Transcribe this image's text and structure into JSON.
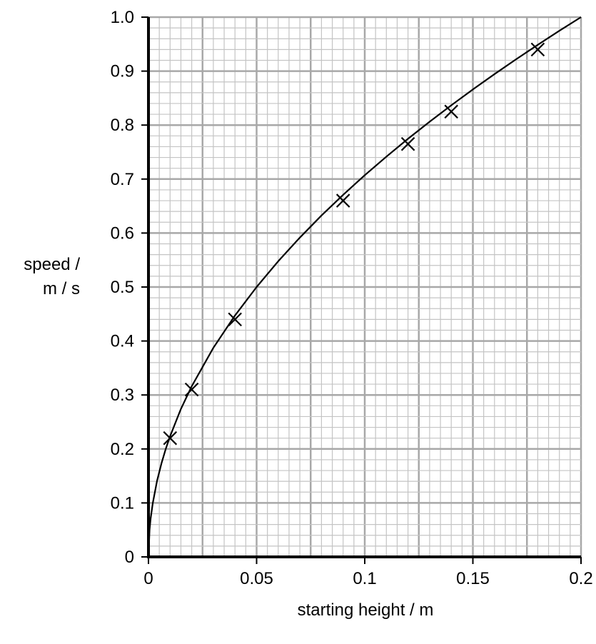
{
  "chart_data": {
    "type": "scatter",
    "xlabel": "starting height / m",
    "ylabel_line1": "speed /",
    "ylabel_line2": "m / s",
    "xlim": [
      0,
      0.2
    ],
    "ylim": [
      0,
      1.0
    ],
    "x_ticks": [
      "0",
      "0.05",
      "0.1",
      "0.15",
      "0.2"
    ],
    "y_ticks": [
      "0",
      "0.1",
      "0.2",
      "0.3",
      "0.4",
      "0.5",
      "0.6",
      "0.7",
      "0.8",
      "0.9",
      "1.0"
    ],
    "grid": true,
    "points": [
      {
        "x": 0.01,
        "y": 0.22
      },
      {
        "x": 0.02,
        "y": 0.31
      },
      {
        "x": 0.04,
        "y": 0.44
      },
      {
        "x": 0.09,
        "y": 0.66
      },
      {
        "x": 0.12,
        "y": 0.765
      },
      {
        "x": 0.14,
        "y": 0.825
      },
      {
        "x": 0.18,
        "y": 0.94
      }
    ],
    "curve": {
      "x": [
        0,
        0.0005,
        0.001,
        0.002,
        0.004,
        0.006,
        0.008,
        0.01,
        0.015,
        0.02,
        0.03,
        0.04,
        0.05,
        0.06,
        0.07,
        0.08,
        0.09,
        0.1,
        0.11,
        0.12,
        0.13,
        0.14,
        0.15,
        0.16,
        0.17,
        0.18,
        0.19,
        0.2
      ],
      "y": [
        0,
        0.05,
        0.0707,
        0.1,
        0.1414,
        0.1732,
        0.2,
        0.2236,
        0.2739,
        0.3162,
        0.3873,
        0.4472,
        0.5,
        0.5477,
        0.5916,
        0.6325,
        0.6708,
        0.7071,
        0.7416,
        0.7746,
        0.8062,
        0.8367,
        0.866,
        0.8944,
        0.922,
        0.9487,
        0.9747,
        1.0
      ]
    },
    "colors": {
      "minor_grid": "#c4c4c4",
      "major_grid": "#a8a8a8",
      "axis": "#000000",
      "curve": "#000000"
    }
  }
}
